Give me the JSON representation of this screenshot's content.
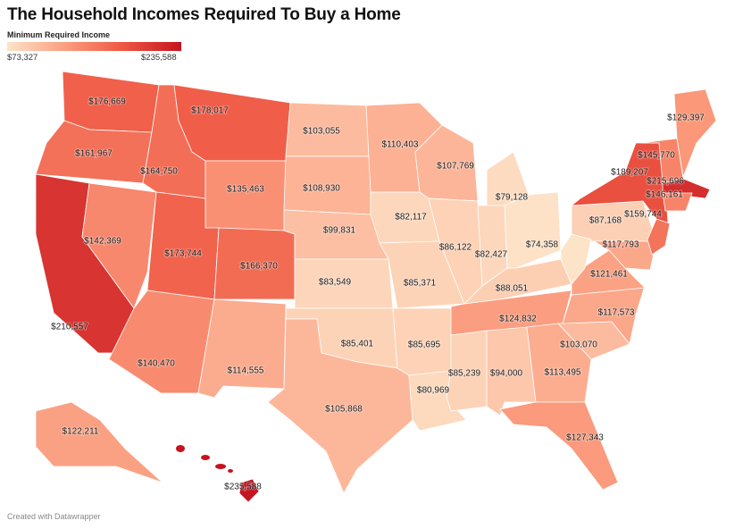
{
  "title": "The Household Incomes Required To Buy a Home",
  "legend": {
    "title": "Minimum Required Income",
    "min_label": "$73,327",
    "max_label": "$235,588",
    "min": 73327,
    "max": 235588,
    "colors": [
      "#fde3c8",
      "#fb9a7c",
      "#ef5a45",
      "#c5141f"
    ]
  },
  "footer": "Created with Datawrapper",
  "states": [
    {
      "id": "WA",
      "value": 176669,
      "label": "$176,669"
    },
    {
      "id": "OR",
      "value": 161967,
      "label": "$161,967"
    },
    {
      "id": "CA",
      "value": 210557,
      "label": "$210,557"
    },
    {
      "id": "NV",
      "value": 142369,
      "label": "$142,369"
    },
    {
      "id": "ID",
      "value": 164750,
      "label": "$164,750"
    },
    {
      "id": "MT",
      "value": 178017,
      "label": "$178,017"
    },
    {
      "id": "WY",
      "value": 135463,
      "label": "$135,463"
    },
    {
      "id": "UT",
      "value": 173744,
      "label": "$173,744"
    },
    {
      "id": "CO",
      "value": 166370,
      "label": "$166,370"
    },
    {
      "id": "AZ",
      "value": 140470,
      "label": "$140,470"
    },
    {
      "id": "NM",
      "value": 114555,
      "label": "$114,555"
    },
    {
      "id": "ND",
      "value": 103055,
      "label": "$103,055"
    },
    {
      "id": "SD",
      "value": 108930,
      "label": "$108,930"
    },
    {
      "id": "NE",
      "value": 99831,
      "label": "$99,831"
    },
    {
      "id": "KS",
      "value": 83549,
      "label": "$83,549"
    },
    {
      "id": "OK",
      "value": 85401,
      "label": "$85,401"
    },
    {
      "id": "TX",
      "value": 105868,
      "label": "$105,868"
    },
    {
      "id": "MN",
      "value": 110403,
      "label": "$110,403"
    },
    {
      "id": "IA",
      "value": 82117,
      "label": "$82,117"
    },
    {
      "id": "MO",
      "value": 85371,
      "label": "$85,371"
    },
    {
      "id": "AR",
      "value": 85695,
      "label": "$85,695"
    },
    {
      "id": "LA",
      "value": 80969,
      "label": "$80,969"
    },
    {
      "id": "WI",
      "value": 107769,
      "label": "$107,769"
    },
    {
      "id": "IL",
      "value": 86122,
      "label": "$86,122"
    },
    {
      "id": "MI",
      "value": 79128,
      "label": "$79,128"
    },
    {
      "id": "IN",
      "value": 82427,
      "label": "$82,427"
    },
    {
      "id": "OH",
      "value": 74358,
      "label": "$74,358"
    },
    {
      "id": "KY",
      "value": 88051,
      "label": "$88,051"
    },
    {
      "id": "TN",
      "value": 124832,
      "label": "$124,832"
    },
    {
      "id": "MS",
      "value": 85239,
      "label": "$85,239"
    },
    {
      "id": "AL",
      "value": 94000,
      "label": "$94,000"
    },
    {
      "id": "GA",
      "value": 113495,
      "label": "$113,495"
    },
    {
      "id": "FL",
      "value": 127343,
      "label": "$127,343"
    },
    {
      "id": "SC",
      "value": 103070,
      "label": "$103,070"
    },
    {
      "id": "NC",
      "value": 117573,
      "label": "$117,573"
    },
    {
      "id": "VA",
      "value": 121461,
      "label": "$121,461"
    },
    {
      "id": "MD",
      "value": 117793,
      "label": "$117,793"
    },
    {
      "id": "PA",
      "value": 87168,
      "label": "$87,168"
    },
    {
      "id": "NY",
      "value": 189207,
      "label": "$189,207"
    },
    {
      "id": "VT",
      "value": 145770,
      "label": "$145,770"
    },
    {
      "id": "MA",
      "value": 215696,
      "label": "$215,696"
    },
    {
      "id": "CT",
      "value": 146161,
      "label": "$146,161"
    },
    {
      "id": "NJ",
      "value": 159744,
      "label": "$159,744"
    },
    {
      "id": "ME",
      "value": 129397,
      "label": "$129,397"
    },
    {
      "id": "WV",
      "value": 73327,
      "label": ""
    },
    {
      "id": "AK",
      "value": 122211,
      "label": "$122,211"
    },
    {
      "id": "HI",
      "value": 235588,
      "label": "$235,588"
    }
  ]
}
